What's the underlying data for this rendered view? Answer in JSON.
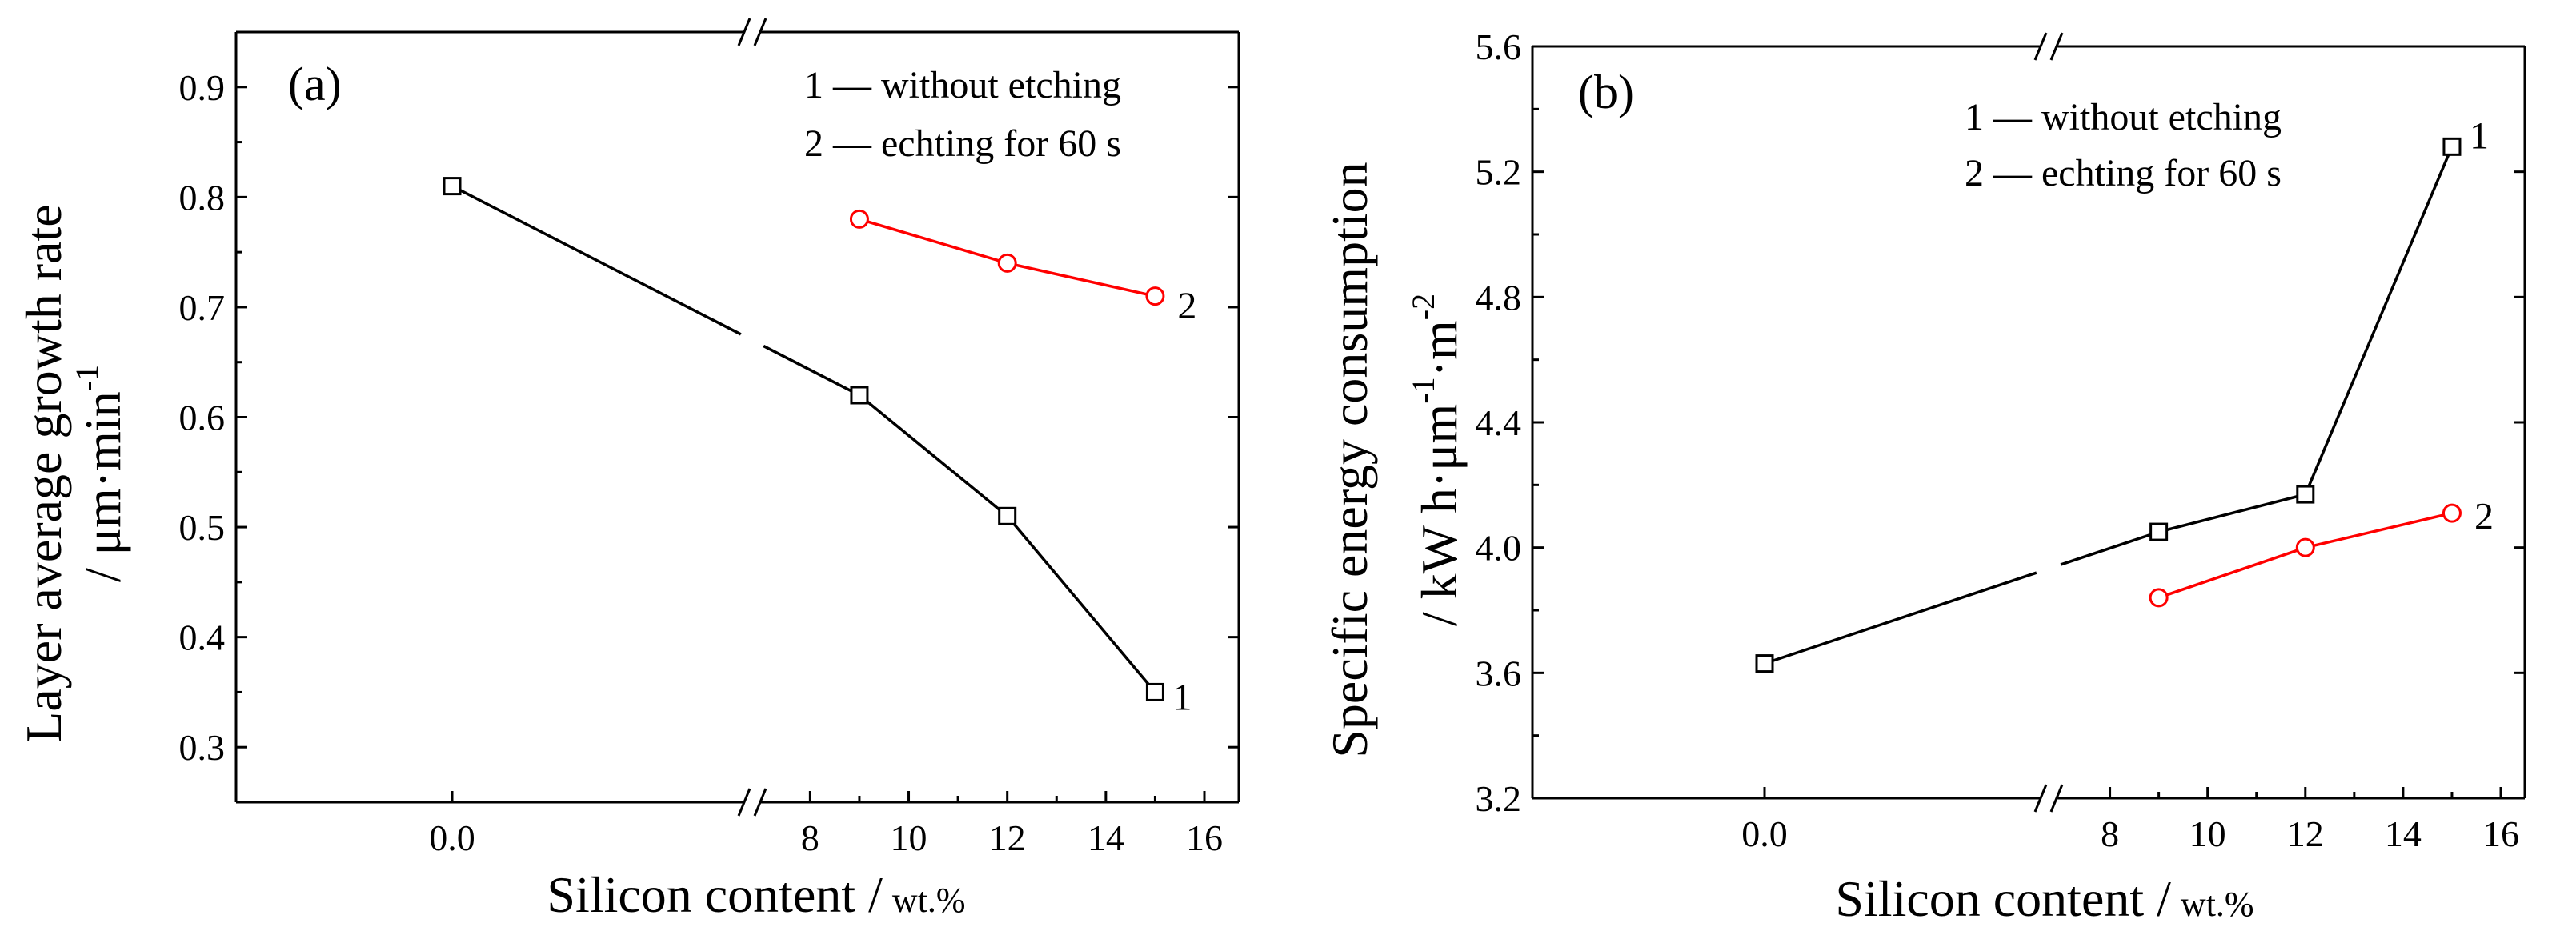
{
  "chart_data": [
    {
      "type": "line",
      "panel_label": "(a)",
      "ylabel_line1": "Layer average growth rate",
      "ylabel_line2_base": "/ μm·min",
      "ylabel_line2_sup": "-1",
      "xlabel_main": "Silicon content /",
      "xlabel_unit": "wt.%",
      "ylim": [
        0.25,
        0.95
      ],
      "yticks": [
        0.3,
        0.4,
        0.5,
        0.6,
        0.7,
        0.8,
        0.9
      ],
      "ytick_labels": [
        "0.3",
        "0.4",
        "0.5",
        "0.6",
        "0.7",
        "0.8",
        "0.9"
      ],
      "x_break_segments": [
        {
          "range": [
            -0.5,
            0.5
          ],
          "ticks": [
            0
          ],
          "tick_labels": [
            "0.0"
          ]
        },
        {
          "range": [
            6.5,
            16
          ],
          "ticks": [
            8,
            10,
            12,
            14,
            16
          ],
          "tick_labels": [
            "8",
            "10",
            "12",
            "14",
            "16"
          ]
        }
      ],
      "legend": [
        "1 — without etching",
        "2 — echting for 60 s"
      ],
      "series": [
        {
          "name": "1",
          "label": "1",
          "color": "#000000",
          "marker": "square",
          "x": [
            0,
            9,
            12,
            15
          ],
          "y": [
            0.81,
            0.62,
            0.51,
            0.35
          ]
        },
        {
          "name": "2",
          "label": "2",
          "color": "#ff0000",
          "marker": "circle",
          "x": [
            9,
            12,
            15
          ],
          "y": [
            0.78,
            0.74,
            0.71
          ]
        }
      ]
    },
    {
      "type": "line",
      "panel_label": "(b)",
      "ylabel_line1": "Specific energy consumption",
      "ylabel_line2_a": "/ kW h·μm",
      "ylabel_line2_sup1": "-1",
      "ylabel_line2_b": "·m",
      "ylabel_line2_sup2": "-2",
      "xlabel_main": "Silicon content /",
      "xlabel_unit": "wt.%",
      "ylim": [
        3.2,
        5.6
      ],
      "yticks": [
        3.2,
        3.6,
        4.0,
        4.4,
        4.8,
        5.2,
        5.6
      ],
      "ytick_labels": [
        "3.2",
        "3.6",
        "4.0",
        "4.4",
        "4.8",
        "5.2",
        "5.6"
      ],
      "x_break_segments": [
        {
          "range": [
            -0.5,
            0.5
          ],
          "ticks": [
            0
          ],
          "tick_labels": [
            "0.0"
          ]
        },
        {
          "range": [
            6.5,
            16
          ],
          "ticks": [
            8,
            10,
            12,
            14,
            16
          ],
          "tick_labels": [
            "8",
            "10",
            "12",
            "14",
            "16"
          ]
        }
      ],
      "legend": [
        "1 — without etching",
        "2 — echting for 60 s"
      ],
      "series": [
        {
          "name": "1",
          "label": "1",
          "color": "#000000",
          "marker": "square",
          "x": [
            0,
            9,
            12,
            15
          ],
          "y": [
            3.63,
            4.05,
            4.17,
            5.28
          ]
        },
        {
          "name": "2",
          "label": "2",
          "color": "#ff0000",
          "marker": "circle",
          "x": [
            9,
            12,
            15
          ],
          "y": [
            3.84,
            4.0,
            4.11
          ]
        }
      ]
    }
  ]
}
